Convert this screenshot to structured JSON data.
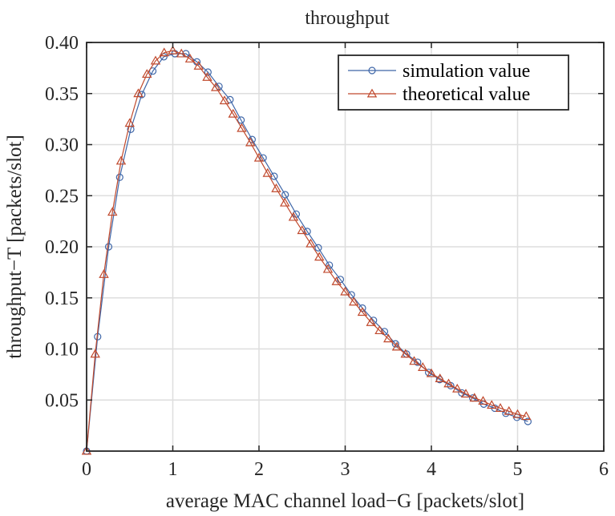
{
  "chart_data": {
    "type": "line",
    "title": "throughput",
    "xlabel": "average MAC channel load−G [packets/slot]",
    "ylabel": "throughput−T [packets/slot]",
    "xlim": [
      0,
      6
    ],
    "ylim": [
      0,
      0.4
    ],
    "xticks": [
      0,
      1,
      2,
      3,
      4,
      5,
      6
    ],
    "xtick_labels": [
      "0",
      "1",
      "2",
      "3",
      "4",
      "5",
      "6"
    ],
    "yticks": [
      0.05,
      0.1,
      0.15,
      0.2,
      0.25,
      0.3,
      0.35,
      0.4
    ],
    "ytick_labels": [
      "0.05",
      "0.10",
      "0.15",
      "0.20",
      "0.25",
      "0.30",
      "0.35",
      "0.40"
    ],
    "grid": true,
    "legend_position": "top-right",
    "series": [
      {
        "name": "simulation value",
        "color": "#3e66a8",
        "marker": "circle",
        "x": [
          0,
          0.128,
          0.256,
          0.384,
          0.512,
          0.64,
          0.768,
          0.896,
          1.024,
          1.152,
          1.28,
          1.408,
          1.536,
          1.664,
          1.792,
          1.92,
          2.048,
          2.176,
          2.304,
          2.432,
          2.56,
          2.688,
          2.816,
          2.944,
          3.072,
          3.2,
          3.328,
          3.456,
          3.584,
          3.712,
          3.84,
          3.968,
          4.096,
          4.224,
          4.352,
          4.48,
          4.608,
          4.736,
          4.864,
          4.992,
          5.12
        ],
        "y": [
          0.0,
          0.112,
          0.2,
          0.268,
          0.315,
          0.349,
          0.372,
          0.386,
          0.389,
          0.389,
          0.381,
          0.371,
          0.357,
          0.344,
          0.324,
          0.305,
          0.287,
          0.269,
          0.251,
          0.232,
          0.215,
          0.199,
          0.182,
          0.168,
          0.153,
          0.14,
          0.128,
          0.117,
          0.105,
          0.095,
          0.087,
          0.077,
          0.07,
          0.064,
          0.057,
          0.052,
          0.046,
          0.042,
          0.037,
          0.033,
          0.029
        ]
      },
      {
        "name": "theoretical value",
        "color": "#c0492d",
        "marker": "triangle",
        "x": [
          0,
          0.1,
          0.2,
          0.3,
          0.4,
          0.5,
          0.6,
          0.7,
          0.8,
          0.9,
          1.0,
          1.1,
          1.2,
          1.3,
          1.4,
          1.5,
          1.6,
          1.7,
          1.8,
          1.9,
          2.0,
          2.1,
          2.2,
          2.3,
          2.4,
          2.5,
          2.6,
          2.7,
          2.8,
          2.9,
          3.0,
          3.1,
          3.2,
          3.3,
          3.4,
          3.5,
          3.6,
          3.7,
          3.8,
          3.9,
          4.0,
          4.1,
          4.2,
          4.3,
          4.4,
          4.5,
          4.6,
          4.7,
          4.8,
          4.9,
          5.0,
          5.1
        ],
        "y": [
          0.0,
          0.095,
          0.173,
          0.234,
          0.284,
          0.321,
          0.35,
          0.369,
          0.382,
          0.39,
          0.392,
          0.389,
          0.384,
          0.377,
          0.366,
          0.356,
          0.343,
          0.33,
          0.316,
          0.302,
          0.287,
          0.272,
          0.257,
          0.243,
          0.229,
          0.216,
          0.203,
          0.19,
          0.178,
          0.166,
          0.156,
          0.146,
          0.136,
          0.126,
          0.118,
          0.11,
          0.102,
          0.095,
          0.088,
          0.082,
          0.076,
          0.071,
          0.066,
          0.061,
          0.056,
          0.052,
          0.049,
          0.045,
          0.042,
          0.039,
          0.036,
          0.034
        ]
      }
    ]
  }
}
